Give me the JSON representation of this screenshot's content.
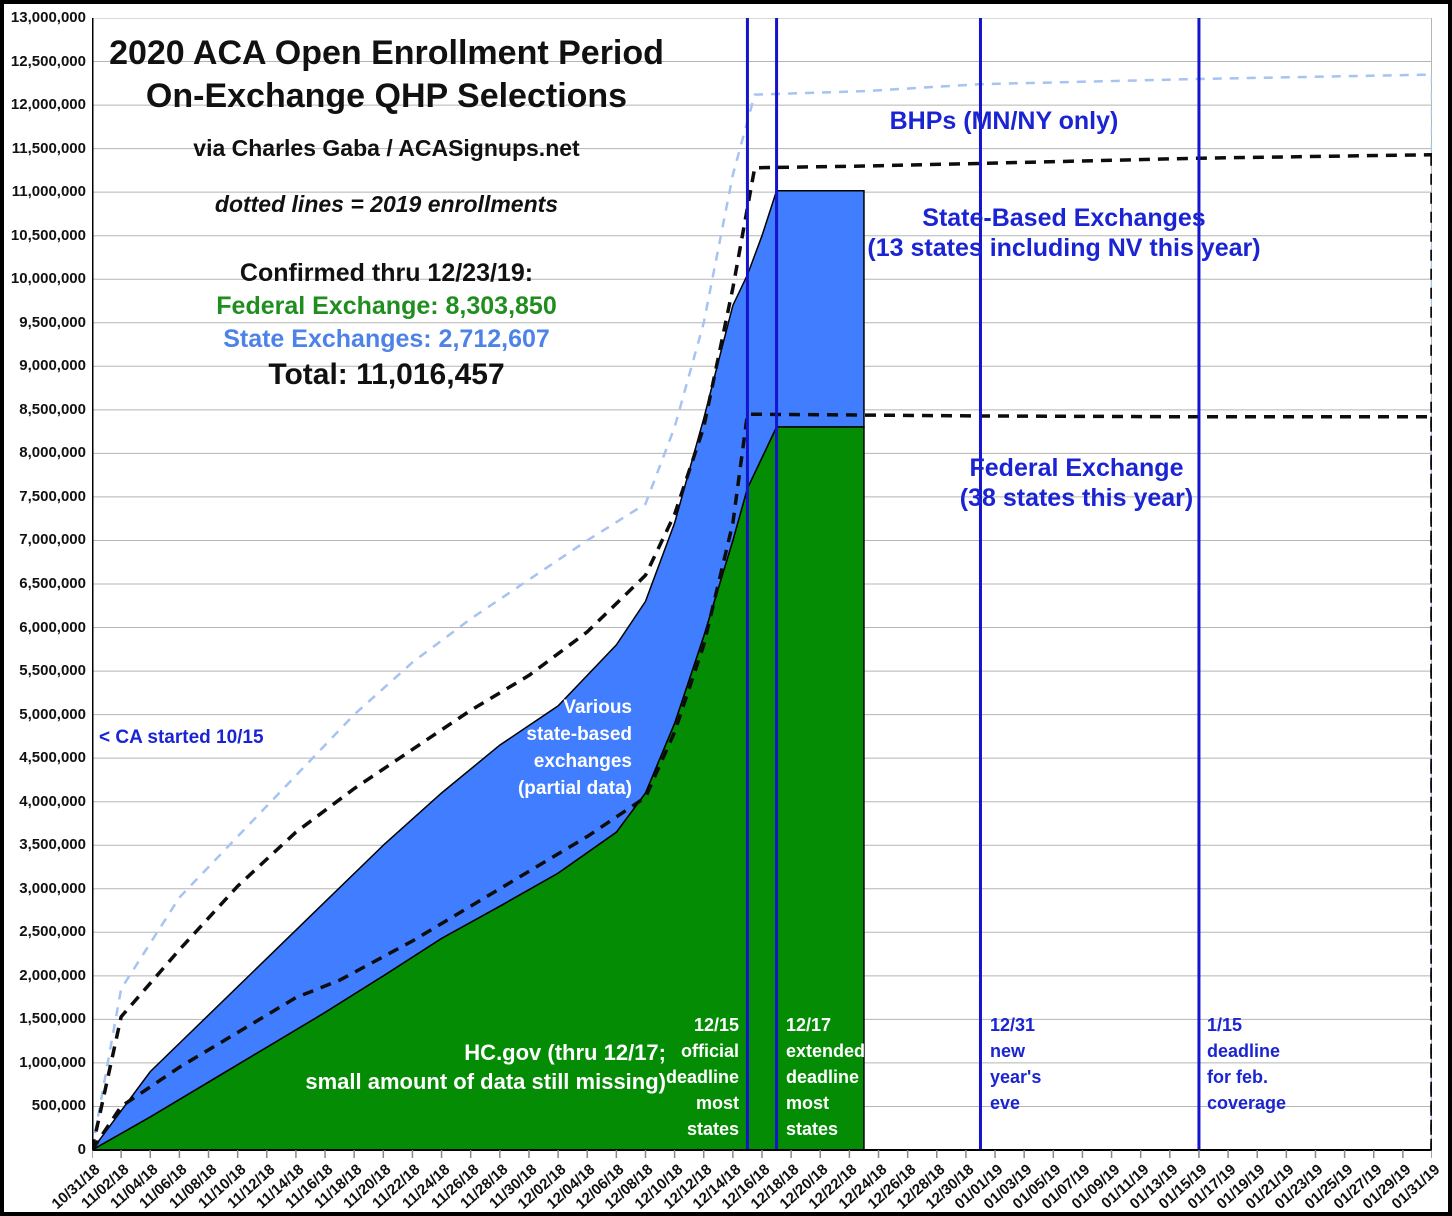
{
  "title_block": {
    "title_line1": "2020 ACA Open Enrollment Period",
    "title_line2": "On-Exchange QHP Selections",
    "byline": "via Charles Gaba / ACASignups.net",
    "note": "dotted lines = 2019 enrollments",
    "confirmed_heading": "Confirmed thru 12/23/19:",
    "federal_line": "Federal Exchange: 8,303,850",
    "state_line": "State Exchanges: 2,712,607",
    "total_line": "Total: 11,016,457"
  },
  "annotations": {
    "bhp_label": "BHPs (MN/NY only)",
    "sbe_label": [
      "State-Based Exchanges",
      "(13 states including NV this year)"
    ],
    "federal_label": [
      "Federal Exchange",
      "(38 states this year)"
    ],
    "ca_note": "< CA started 10/15",
    "sbe_area_note": [
      "Various",
      "state-based",
      "exchanges",
      "(partial data)"
    ],
    "hcgov_note": [
      "HC.gov (thru 12/17;",
      "small amount of data still missing)"
    ],
    "deadline_1215": [
      "12/15",
      "official",
      "deadline",
      "most",
      "states"
    ],
    "deadline_1217": [
      "12/17",
      "extended",
      "deadline",
      "most",
      "states"
    ],
    "deadline_1231": [
      "12/31",
      "new",
      "year's",
      "eve"
    ],
    "deadline_0115": [
      "1/15",
      "deadline",
      "for feb.",
      "coverage"
    ]
  },
  "colors": {
    "green_area": "#058c05",
    "blue_area": "#407eff",
    "light_blue_dash": "#a6c3f2",
    "black_dash": "#0d0d0d",
    "event_line_blue": "#1414cc",
    "annotation_blue": "#1b24d2",
    "green_text": "#1f8e1f",
    "blue_text": "#4d82e8",
    "grid": "#b5b5b5",
    "axis": "#000000",
    "area_outline": "#000000",
    "white_note": "#ffffff"
  },
  "chart_data": {
    "type": "area",
    "title": "2020 ACA Open Enrollment Period On-Exchange QHP Selections",
    "subtitle": "via Charles Gaba / ACASignups.net",
    "legend_note": "dotted lines = 2019 enrollments",
    "grid": true,
    "x_axis": {
      "unit": "days since 10/31",
      "total_days": 92,
      "tick_interval_days": 2,
      "tick_labels": [
        "10/31/18",
        "11/02/18",
        "11/04/18",
        "11/06/18",
        "11/08/18",
        "11/10/18",
        "11/12/18",
        "11/14/18",
        "11/16/18",
        "11/18/18",
        "11/20/18",
        "11/22/18",
        "11/24/18",
        "11/26/18",
        "11/28/18",
        "11/30/18",
        "12/02/18",
        "12/04/18",
        "12/06/18",
        "12/08/18",
        "12/10/18",
        "12/12/18",
        "12/14/18",
        "12/16/18",
        "12/18/18",
        "12/20/18",
        "12/22/18",
        "12/24/18",
        "12/26/18",
        "12/28/18",
        "12/30/18",
        "01/01/19",
        "01/03/19",
        "01/05/19",
        "01/07/19",
        "01/09/19",
        "01/11/19",
        "01/13/19",
        "01/15/19",
        "01/17/19",
        "01/19/19",
        "01/21/19",
        "01/23/19",
        "01/25/19",
        "01/27/19",
        "01/29/19",
        "01/31/19"
      ]
    },
    "y_axis": {
      "min": 0,
      "max": 13000000,
      "step": 500000,
      "tick_labels": [
        "0",
        "500,000",
        "1,000,000",
        "1,500,000",
        "2,000,000",
        "2,500,000",
        "3,000,000",
        "3,500,000",
        "4,000,000",
        "4,500,000",
        "5,000,000",
        "5,500,000",
        "6,000,000",
        "6,500,000",
        "7,000,000",
        "7,500,000",
        "8,000,000",
        "8,500,000",
        "9,000,000",
        "9,500,000",
        "10,000,000",
        "10,500,000",
        "11,000,000",
        "11,500,000",
        "12,000,000",
        "12,500,000",
        "13,000,000"
      ]
    },
    "key_values": {
      "federal_confirmed": 8303850,
      "state_confirmed": 2712607,
      "total_confirmed": 11016457,
      "confirmed_through": "12/23/19"
    },
    "event_lines": [
      {
        "day": 45,
        "date": "12/15",
        "meaning": "official deadline most states"
      },
      {
        "day": 47,
        "date": "12/17",
        "meaning": "extended deadline most states"
      },
      {
        "day": 61,
        "date": "12/31",
        "meaning": "new year's eve"
      },
      {
        "day": 76,
        "date": "1/15",
        "meaning": "deadline for feb. coverage"
      }
    ],
    "series": [
      {
        "id": "federal_2020",
        "kind": "area",
        "name": "Federal Exchange 2020 (HC.gov, cumulative QHP selections)",
        "color": "#058c05",
        "points": [
          [
            0,
            0
          ],
          [
            4,
            380000
          ],
          [
            8,
            780000
          ],
          [
            12,
            1180000
          ],
          [
            16,
            1580000
          ],
          [
            20,
            2000000
          ],
          [
            24,
            2430000
          ],
          [
            28,
            2800000
          ],
          [
            32,
            3180000
          ],
          [
            36,
            3650000
          ],
          [
            38,
            4100000
          ],
          [
            40,
            4900000
          ],
          [
            42,
            5900000
          ],
          [
            44,
            7000000
          ],
          [
            45,
            7600000
          ],
          [
            46,
            7950000
          ],
          [
            47,
            8303850
          ],
          [
            53,
            8303850
          ]
        ]
      },
      {
        "id": "total_2020",
        "kind": "area-band-top",
        "name": "State-Based Exchanges 2020 stacked on federal (total = 11,016,457)",
        "color": "#407eff",
        "points": [
          [
            0,
            0
          ],
          [
            4,
            900000
          ],
          [
            8,
            1550000
          ],
          [
            12,
            2200000
          ],
          [
            16,
            2850000
          ],
          [
            20,
            3500000
          ],
          [
            24,
            4100000
          ],
          [
            28,
            4650000
          ],
          [
            32,
            5100000
          ],
          [
            36,
            5800000
          ],
          [
            38,
            6300000
          ],
          [
            40,
            7200000
          ],
          [
            42,
            8400000
          ],
          [
            44,
            9700000
          ],
          [
            45,
            10050000
          ],
          [
            46,
            10500000
          ],
          [
            47,
            11016457
          ],
          [
            53,
            11016457
          ]
        ]
      },
      {
        "id": "federal_2019",
        "kind": "line",
        "dash": "11 8",
        "width": 3.5,
        "name": "2019 Federal Exchange enrollments (dotted)",
        "color": "#0d0d0d",
        "end_drop": true,
        "points": [
          [
            0,
            0
          ],
          [
            2,
            500000
          ],
          [
            6,
            950000
          ],
          [
            10,
            1350000
          ],
          [
            14,
            1750000
          ],
          [
            17,
            1950000
          ],
          [
            22,
            2400000
          ],
          [
            26,
            2800000
          ],
          [
            30,
            3200000
          ],
          [
            34,
            3600000
          ],
          [
            38,
            4050000
          ],
          [
            40,
            4800000
          ],
          [
            42,
            5800000
          ],
          [
            44,
            7200000
          ],
          [
            45,
            8450000
          ],
          [
            53,
            8440000
          ],
          [
            61,
            8430000
          ],
          [
            76,
            8420000
          ],
          [
            92,
            8420000
          ]
        ]
      },
      {
        "id": "total_2019",
        "kind": "line",
        "dash": "11 8",
        "width": 3.5,
        "name": "2019 total QHP selections (dotted)",
        "color": "#0d0d0d",
        "end_drop": true,
        "points": [
          [
            0,
            0
          ],
          [
            2,
            1530000
          ],
          [
            6,
            2300000
          ],
          [
            10,
            3030000
          ],
          [
            14,
            3650000
          ],
          [
            18,
            4150000
          ],
          [
            22,
            4600000
          ],
          [
            26,
            5050000
          ],
          [
            30,
            5450000
          ],
          [
            34,
            5950000
          ],
          [
            38,
            6600000
          ],
          [
            40,
            7300000
          ],
          [
            42,
            8300000
          ],
          [
            44,
            9900000
          ],
          [
            45.5,
            11280000
          ],
          [
            53,
            11300000
          ],
          [
            61,
            11330000
          ],
          [
            76,
            11390000
          ],
          [
            92,
            11430000
          ]
        ]
      },
      {
        "id": "bhp_2019",
        "kind": "line",
        "dash": "9 8",
        "width": 2.5,
        "name": "2019 QHPs + BHPs, MN/NY only (dotted light blue)",
        "color": "#a6c3f2",
        "end_drop": true,
        "points": [
          [
            0,
            0
          ],
          [
            2,
            1850000
          ],
          [
            6,
            2900000
          ],
          [
            10,
            3600000
          ],
          [
            14,
            4300000
          ],
          [
            18,
            5000000
          ],
          [
            22,
            5600000
          ],
          [
            26,
            6100000
          ],
          [
            30,
            6550000
          ],
          [
            34,
            7000000
          ],
          [
            38,
            7420000
          ],
          [
            40,
            8300000
          ],
          [
            42,
            9500000
          ],
          [
            44,
            11200000
          ],
          [
            45.5,
            12120000
          ],
          [
            53,
            12160000
          ],
          [
            61,
            12240000
          ],
          [
            76,
            12300000
          ],
          [
            92,
            12350000
          ]
        ]
      }
    ]
  }
}
